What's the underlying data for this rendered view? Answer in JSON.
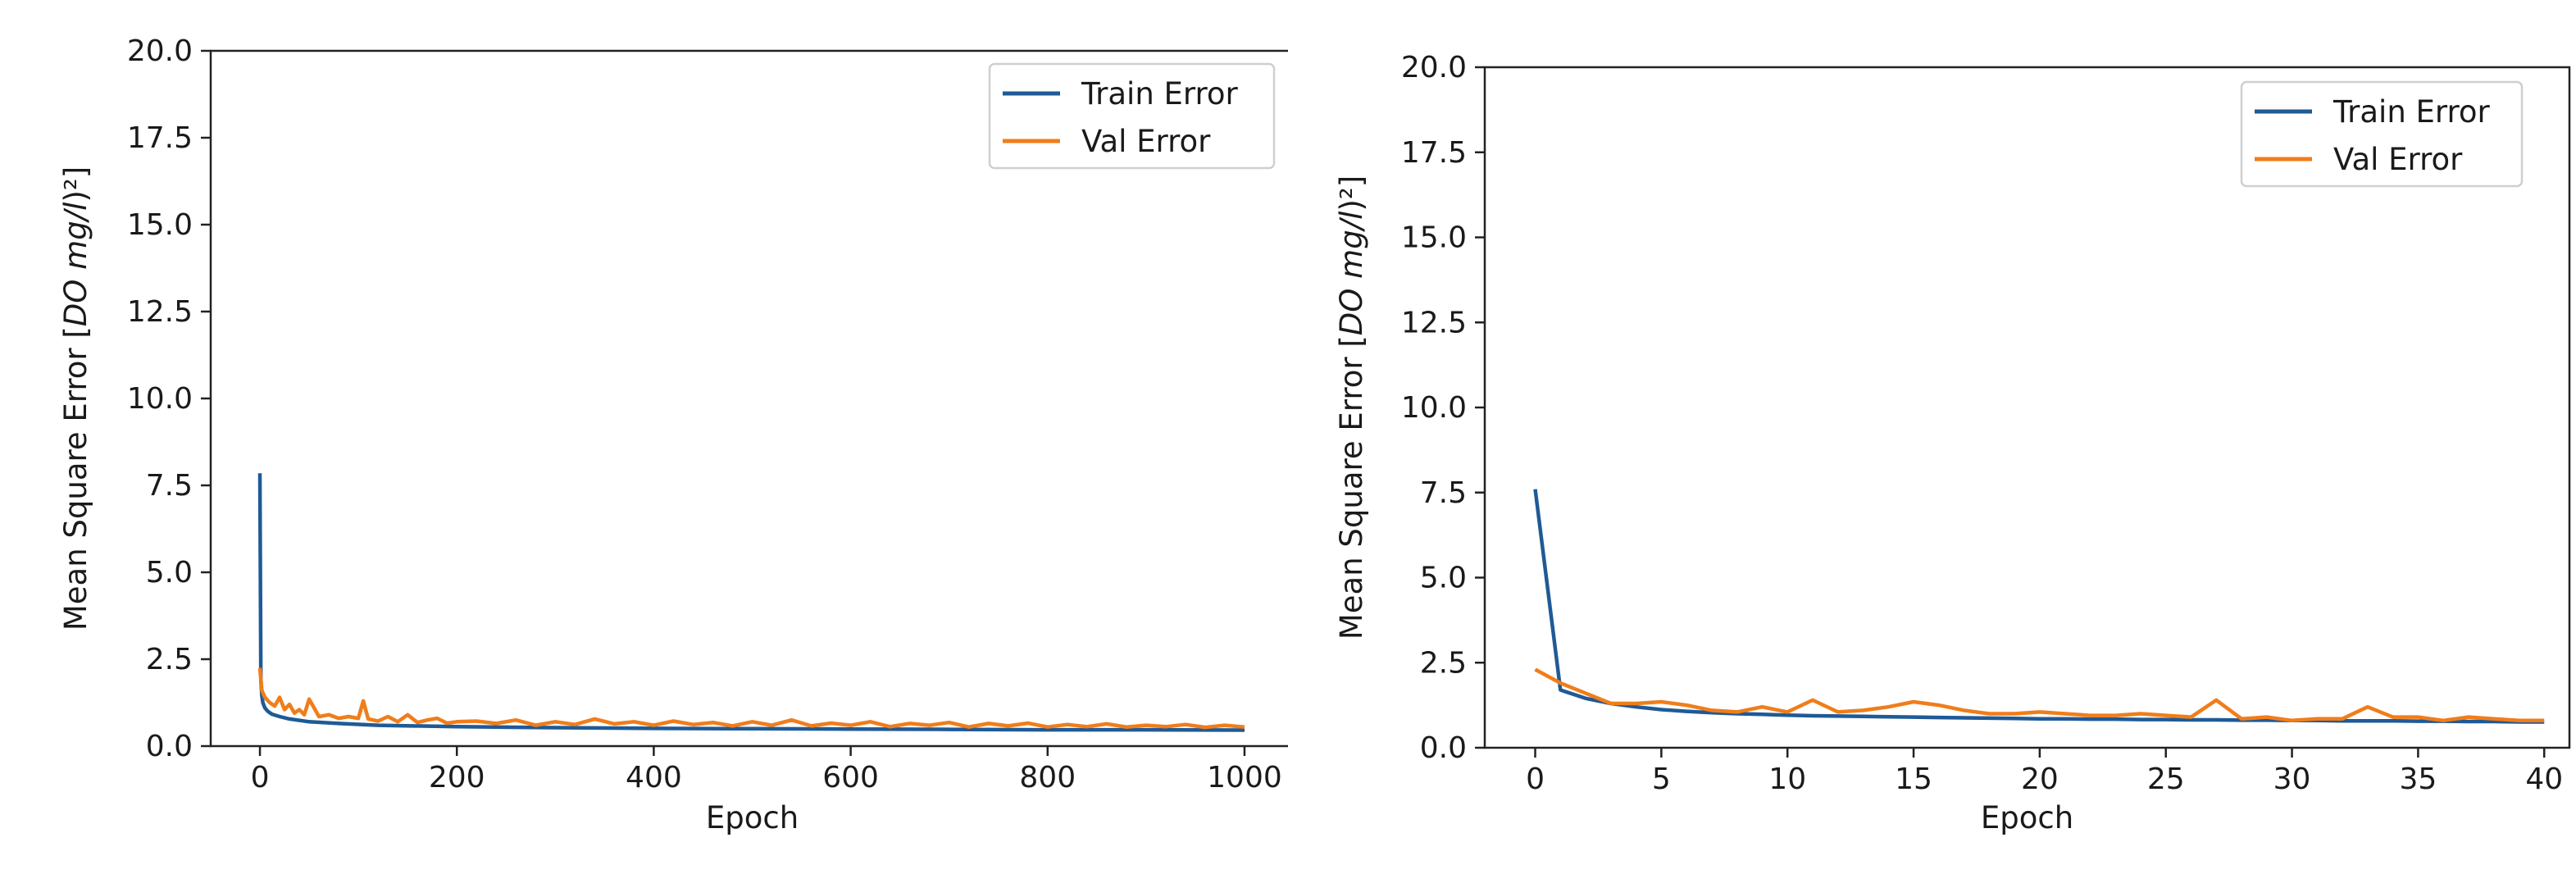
{
  "colors": {
    "train": "#1f5a96",
    "val": "#f07d1a",
    "axis": "#222222"
  },
  "chart_data": [
    {
      "type": "line",
      "title": "",
      "xlabel": "Epoch",
      "ylabel_parts": [
        "Mean Square Error [",
        "DO",
        "   ",
        "mg/l",
        ")²]"
      ],
      "xlim": [
        -50,
        1050
      ],
      "ylim": [
        0,
        20
      ],
      "xticks": [
        0,
        200,
        400,
        600,
        800,
        1000
      ],
      "yticks": [
        "0.0",
        "2.5",
        "5.0",
        "7.5",
        "10.0",
        "12.5",
        "15.0",
        "17.5",
        "20.0"
      ],
      "legend": [
        "Train Error",
        "Val Error"
      ],
      "legend_position": "top-right",
      "grid": false,
      "series": [
        {
          "name": "Train Error",
          "x": [
            0,
            1,
            2,
            3,
            5,
            8,
            12,
            20,
            30,
            50,
            80,
            120,
            200,
            300,
            400,
            500,
            600,
            700,
            800,
            900,
            1000
          ],
          "y": [
            7.85,
            1.9,
            1.45,
            1.25,
            1.1,
            1.0,
            0.92,
            0.85,
            0.78,
            0.7,
            0.65,
            0.6,
            0.56,
            0.53,
            0.51,
            0.5,
            0.49,
            0.48,
            0.47,
            0.47,
            0.46
          ]
        },
        {
          "name": "Val Error",
          "x": [
            0,
            2,
            5,
            10,
            15,
            20,
            25,
            30,
            35,
            40,
            45,
            50,
            60,
            70,
            80,
            90,
            100,
            105,
            110,
            120,
            130,
            140,
            150,
            160,
            170,
            180,
            190,
            200,
            220,
            240,
            260,
            280,
            300,
            320,
            340,
            360,
            380,
            400,
            420,
            440,
            460,
            480,
            500,
            520,
            540,
            560,
            580,
            600,
            620,
            640,
            660,
            680,
            700,
            720,
            740,
            760,
            780,
            800,
            820,
            840,
            860,
            880,
            900,
            920,
            940,
            960,
            980,
            1000
          ],
          "y": [
            2.25,
            1.6,
            1.4,
            1.25,
            1.15,
            1.4,
            1.05,
            1.2,
            0.95,
            1.05,
            0.9,
            1.35,
            0.85,
            0.9,
            0.8,
            0.85,
            0.8,
            1.3,
            0.78,
            0.72,
            0.85,
            0.7,
            0.9,
            0.68,
            0.75,
            0.8,
            0.66,
            0.7,
            0.72,
            0.65,
            0.75,
            0.6,
            0.7,
            0.62,
            0.78,
            0.64,
            0.7,
            0.6,
            0.72,
            0.62,
            0.68,
            0.58,
            0.7,
            0.6,
            0.75,
            0.58,
            0.66,
            0.6,
            0.7,
            0.56,
            0.65,
            0.6,
            0.68,
            0.55,
            0.65,
            0.58,
            0.66,
            0.55,
            0.62,
            0.56,
            0.64,
            0.55,
            0.6,
            0.56,
            0.62,
            0.54,
            0.6,
            0.55
          ]
        }
      ]
    },
    {
      "type": "line",
      "title": "",
      "xlabel": "Epoch",
      "ylabel_parts": [
        "Mean Square Error [",
        "DO",
        "   ",
        "mg/l",
        ")²]"
      ],
      "xlim": [
        -2,
        41
      ],
      "ylim": [
        0,
        20
      ],
      "xticks": [
        0,
        5,
        10,
        15,
        20,
        25,
        30,
        35,
        40
      ],
      "yticks": [
        "0.0",
        "2.5",
        "5.0",
        "7.5",
        "10.0",
        "12.5",
        "15.0",
        "17.5",
        "20.0"
      ],
      "legend": [
        "Train Error",
        "Val Error"
      ],
      "legend_position": "top-right",
      "grid": false,
      "series": [
        {
          "name": "Train Error",
          "x": [
            0,
            1,
            2,
            3,
            4,
            5,
            6,
            7,
            8,
            9,
            10,
            11,
            12,
            13,
            14,
            15,
            16,
            17,
            18,
            19,
            20,
            21,
            22,
            23,
            24,
            25,
            26,
            27,
            28,
            29,
            30,
            31,
            32,
            33,
            34,
            35,
            36,
            37,
            38,
            39,
            40
          ],
          "y": [
            7.6,
            1.7,
            1.45,
            1.3,
            1.2,
            1.12,
            1.07,
            1.03,
            1.0,
            0.98,
            0.96,
            0.94,
            0.93,
            0.92,
            0.91,
            0.9,
            0.89,
            0.88,
            0.87,
            0.86,
            0.85,
            0.85,
            0.84,
            0.84,
            0.83,
            0.83,
            0.82,
            0.82,
            0.81,
            0.81,
            0.8,
            0.8,
            0.79,
            0.79,
            0.79,
            0.78,
            0.78,
            0.77,
            0.77,
            0.76,
            0.76
          ]
        },
        {
          "name": "Val Error",
          "x": [
            0,
            1,
            2,
            3,
            4,
            5,
            6,
            7,
            8,
            9,
            10,
            11,
            12,
            13,
            14,
            15,
            16,
            17,
            18,
            19,
            20,
            21,
            22,
            23,
            24,
            25,
            26,
            27,
            28,
            29,
            30,
            31,
            32,
            33,
            34,
            35,
            36,
            37,
            38,
            39,
            40
          ],
          "y": [
            2.3,
            1.9,
            1.6,
            1.3,
            1.3,
            1.35,
            1.25,
            1.1,
            1.05,
            1.2,
            1.05,
            1.4,
            1.05,
            1.1,
            1.2,
            1.35,
            1.25,
            1.1,
            1.0,
            1.0,
            1.05,
            1.0,
            0.95,
            0.95,
            1.0,
            0.95,
            0.9,
            1.4,
            0.85,
            0.9,
            0.8,
            0.85,
            0.85,
            1.2,
            0.9,
            0.9,
            0.8,
            0.9,
            0.85,
            0.8,
            0.8
          ]
        }
      ]
    }
  ]
}
